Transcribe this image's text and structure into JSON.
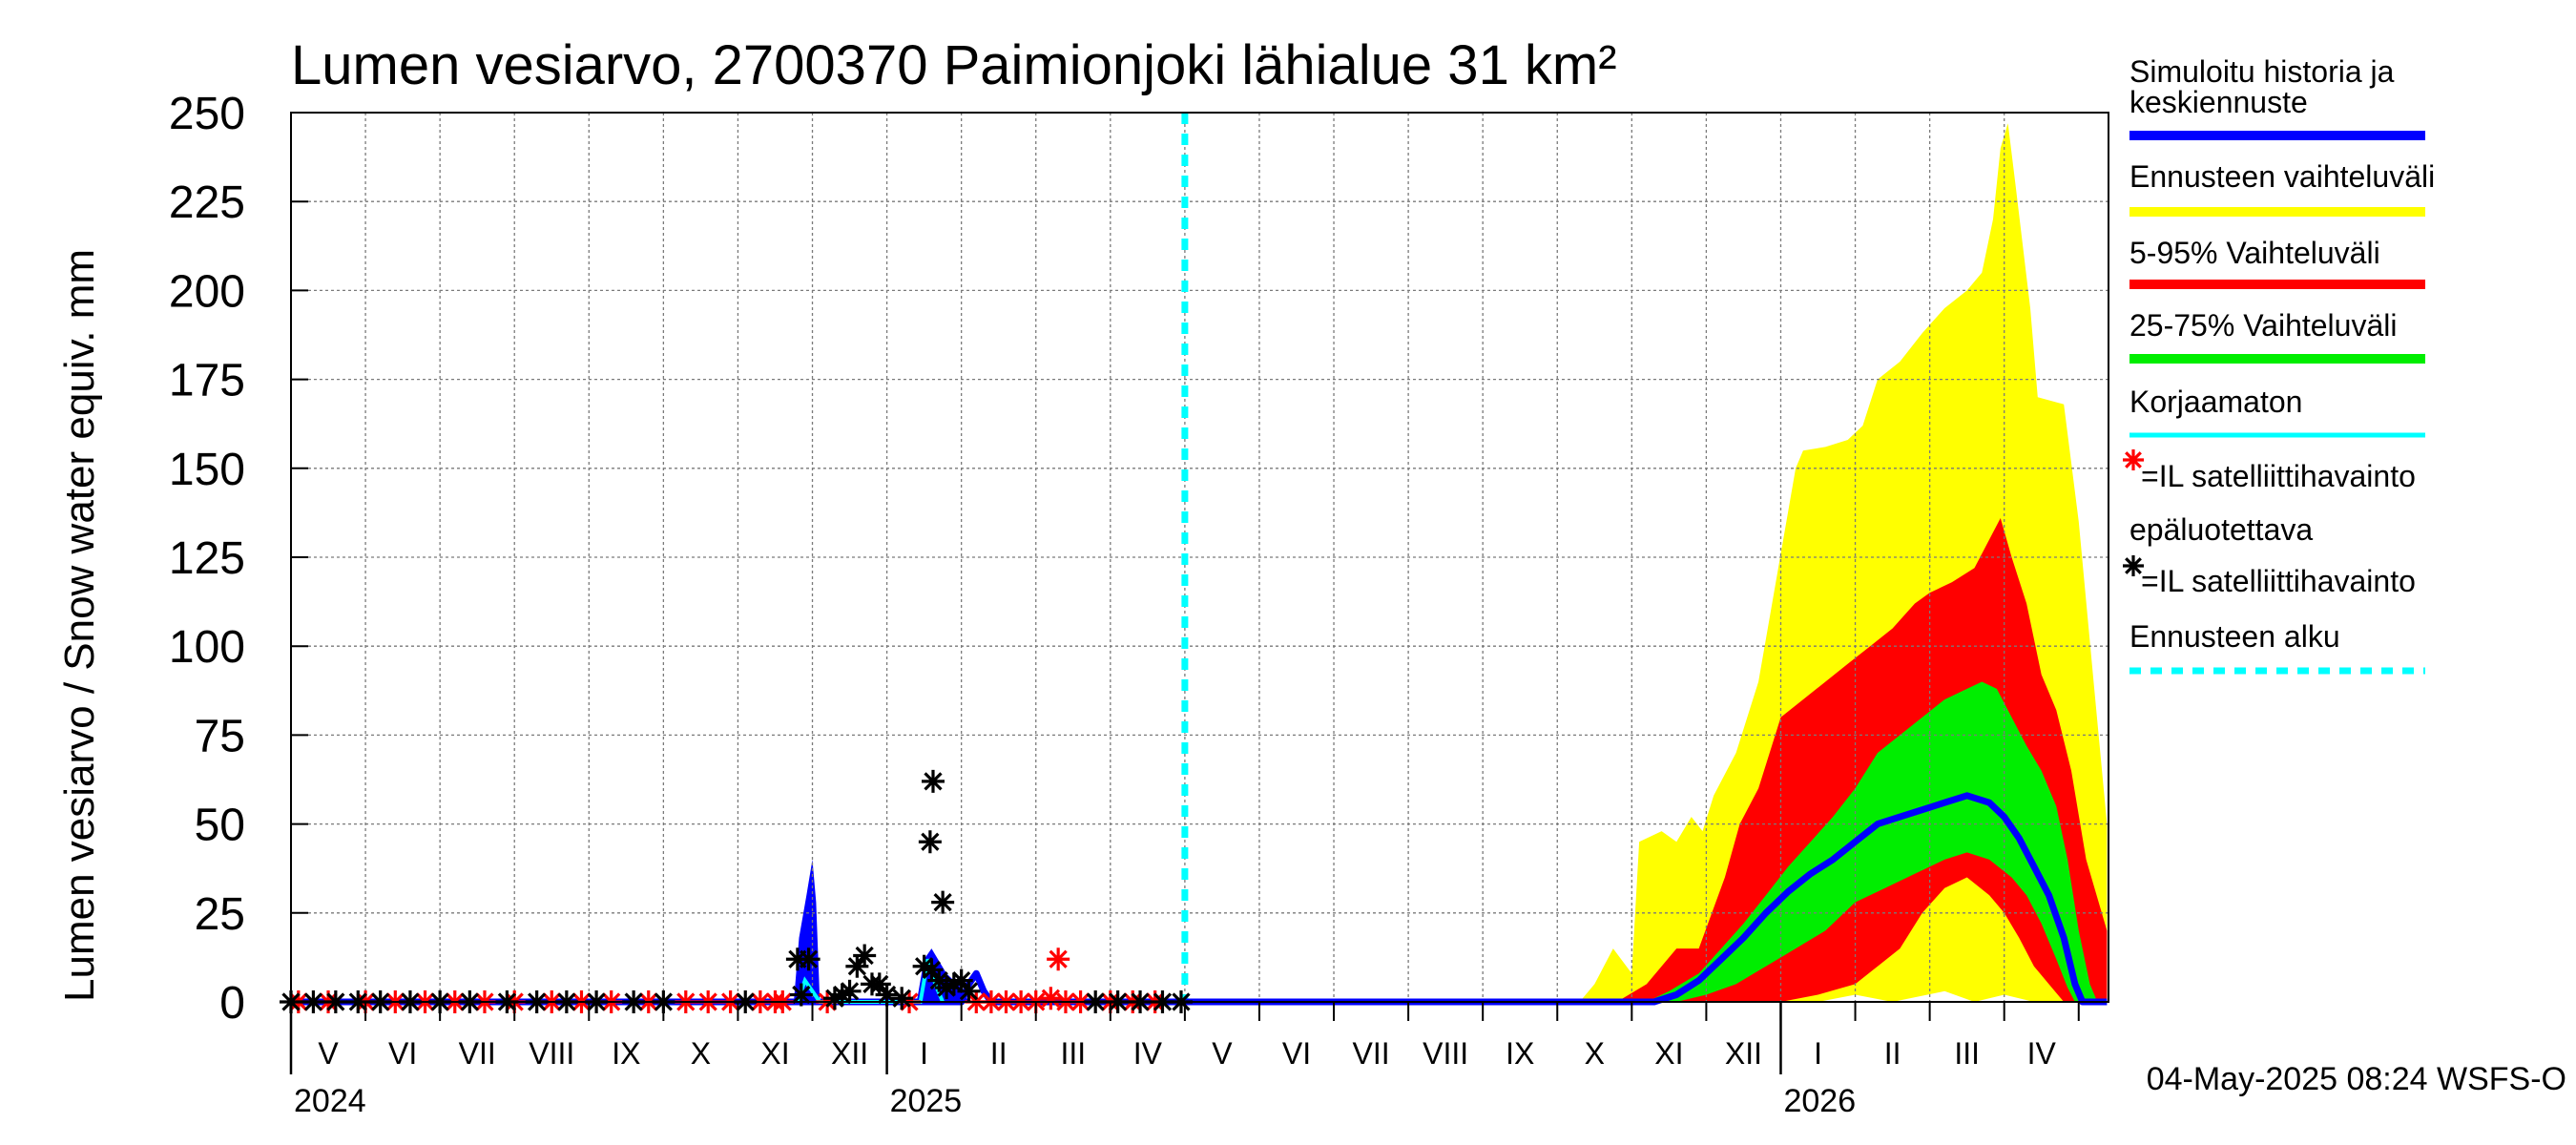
{
  "chart_data": {
    "type": "area",
    "title": "Lumen vesiarvo, 2700370 Paimionjoki lähialue 31 km²",
    "ylabel": "Lumen vesiarvo / Snow water equiv.     mm",
    "ylim": [
      0,
      250
    ],
    "yticks": [
      "0",
      "25",
      "50",
      "75",
      "100",
      "125",
      "150",
      "175",
      "200",
      "225",
      "250"
    ],
    "grid": true,
    "months": [
      {
        "label": "V",
        "center": 0.5
      },
      {
        "label": "VI",
        "center": 1.5
      },
      {
        "label": "VII",
        "center": 2.5
      },
      {
        "label": "VIII",
        "center": 3.5
      },
      {
        "label": "IX",
        "center": 4.5
      },
      {
        "label": "X",
        "center": 5.5
      },
      {
        "label": "XI",
        "center": 6.5
      },
      {
        "label": "XII",
        "center": 7.5
      },
      {
        "label": "I",
        "center": 8.5
      },
      {
        "label": "II",
        "center": 9.5
      },
      {
        "label": "III",
        "center": 10.5
      },
      {
        "label": "IV",
        "center": 11.5
      },
      {
        "label": "V",
        "center": 12.5
      },
      {
        "label": "VI",
        "center": 13.5
      },
      {
        "label": "VII",
        "center": 14.5
      },
      {
        "label": "VIII",
        "center": 15.5
      },
      {
        "label": "IX",
        "center": 16.5
      },
      {
        "label": "X",
        "center": 17.5
      },
      {
        "label": "XI",
        "center": 18.5
      },
      {
        "label": "XII",
        "center": 19.5
      },
      {
        "label": "I",
        "center": 20.5
      },
      {
        "label": "II",
        "center": 21.5
      },
      {
        "label": "III",
        "center": 22.5
      },
      {
        "label": "IV",
        "center": 23.5
      }
    ],
    "years": [
      {
        "label": "2024",
        "at": 0.0
      },
      {
        "label": "2025",
        "at": 8.0
      },
      {
        "label": "2026",
        "at": 20.0
      }
    ],
    "forecast_start": 12.0,
    "x_range": [
      0,
      24.4
    ],
    "bands": {
      "range_upper": [
        [
          17.3,
          0
        ],
        [
          17.5,
          5
        ],
        [
          17.75,
          15
        ],
        [
          18.0,
          8
        ],
        [
          18.1,
          45
        ],
        [
          18.4,
          48
        ],
        [
          18.6,
          45
        ],
        [
          18.8,
          52
        ],
        [
          18.95,
          48
        ],
        [
          19.1,
          58
        ],
        [
          19.4,
          70
        ],
        [
          19.7,
          90
        ],
        [
          19.95,
          120
        ],
        [
          20.2,
          150
        ],
        [
          20.3,
          155
        ],
        [
          20.6,
          156
        ],
        [
          20.9,
          158
        ],
        [
          21.1,
          162
        ],
        [
          21.3,
          175
        ],
        [
          21.6,
          180
        ],
        [
          21.9,
          188
        ],
        [
          22.2,
          195
        ],
        [
          22.5,
          200
        ],
        [
          22.7,
          205
        ],
        [
          22.85,
          220
        ],
        [
          22.95,
          240
        ],
        [
          23.05,
          247
        ],
        [
          23.15,
          230
        ],
        [
          23.35,
          195
        ],
        [
          23.45,
          170
        ],
        [
          23.8,
          168
        ],
        [
          24.0,
          135
        ],
        [
          24.2,
          90
        ],
        [
          24.38,
          50
        ]
      ],
      "range_lower": [
        [
          17.3,
          0
        ],
        [
          17.9,
          0
        ],
        [
          18.6,
          0
        ],
        [
          20.5,
          0
        ],
        [
          21.0,
          2
        ],
        [
          21.5,
          0
        ],
        [
          22.2,
          3
        ],
        [
          22.6,
          0
        ],
        [
          23.0,
          2
        ],
        [
          23.4,
          0
        ],
        [
          24.38,
          0
        ]
      ],
      "p95": [
        [
          17.8,
          0
        ],
        [
          18.2,
          5
        ],
        [
          18.6,
          15
        ],
        [
          18.9,
          15
        ],
        [
          19.25,
          35
        ],
        [
          19.45,
          50
        ],
        [
          19.7,
          60
        ],
        [
          20.0,
          80
        ],
        [
          20.3,
          85
        ],
        [
          20.6,
          90
        ],
        [
          20.9,
          95
        ],
        [
          21.2,
          100
        ],
        [
          21.5,
          105
        ],
        [
          21.8,
          112
        ],
        [
          22.0,
          115
        ],
        [
          22.3,
          118
        ],
        [
          22.6,
          122
        ],
        [
          22.8,
          130
        ],
        [
          22.95,
          136
        ],
        [
          23.1,
          125
        ],
        [
          23.3,
          112
        ],
        [
          23.5,
          92
        ],
        [
          23.7,
          82
        ],
        [
          23.9,
          65
        ],
        [
          24.1,
          40
        ],
        [
          24.38,
          20
        ]
      ],
      "p5": [
        [
          17.8,
          0
        ],
        [
          18.6,
          0
        ],
        [
          19.5,
          0
        ],
        [
          20.0,
          0
        ],
        [
          20.5,
          2
        ],
        [
          21.0,
          5
        ],
        [
          21.3,
          10
        ],
        [
          21.6,
          15
        ],
        [
          21.9,
          25
        ],
        [
          22.2,
          32
        ],
        [
          22.5,
          35
        ],
        [
          22.8,
          30
        ],
        [
          23.0,
          25
        ],
        [
          23.2,
          18
        ],
        [
          23.4,
          10
        ],
        [
          23.6,
          5
        ],
        [
          23.8,
          0
        ],
        [
          24.38,
          0
        ]
      ],
      "p75": [
        [
          18.2,
          0
        ],
        [
          18.5,
          3
        ],
        [
          18.9,
          8
        ],
        [
          19.2,
          15
        ],
        [
          19.5,
          22
        ],
        [
          19.8,
          30
        ],
        [
          20.1,
          38
        ],
        [
          20.4,
          45
        ],
        [
          20.7,
          52
        ],
        [
          21.0,
          60
        ],
        [
          21.3,
          70
        ],
        [
          21.6,
          75
        ],
        [
          21.9,
          80
        ],
        [
          22.2,
          85
        ],
        [
          22.5,
          88
        ],
        [
          22.7,
          90
        ],
        [
          22.9,
          88
        ],
        [
          23.1,
          80
        ],
        [
          23.3,
          72
        ],
        [
          23.5,
          65
        ],
        [
          23.7,
          55
        ],
        [
          23.85,
          40
        ],
        [
          24.0,
          20
        ],
        [
          24.15,
          5
        ],
        [
          24.25,
          0
        ]
      ],
      "p25": [
        [
          18.2,
          0
        ],
        [
          18.6,
          0
        ],
        [
          19.0,
          2
        ],
        [
          19.4,
          5
        ],
        [
          19.8,
          10
        ],
        [
          20.2,
          15
        ],
        [
          20.6,
          20
        ],
        [
          21.0,
          28
        ],
        [
          21.4,
          32
        ],
        [
          21.8,
          36
        ],
        [
          22.2,
          40
        ],
        [
          22.5,
          42
        ],
        [
          22.8,
          40
        ],
        [
          23.1,
          35
        ],
        [
          23.3,
          30
        ],
        [
          23.5,
          22
        ],
        [
          23.7,
          12
        ],
        [
          23.85,
          4
        ],
        [
          23.95,
          0
        ]
      ]
    },
    "series": [
      {
        "name": "Simuloitu historia ja keskiennuste",
        "color": "#0000ff",
        "points": [
          [
            0,
            0
          ],
          [
            9.0,
            0
          ],
          [
            9.1,
            5
          ],
          [
            9.2,
            8
          ],
          [
            9.3,
            3
          ],
          [
            9.4,
            0
          ],
          [
            12.0,
            0
          ],
          [
            18.0,
            0
          ],
          [
            18.3,
            0
          ],
          [
            18.6,
            2
          ],
          [
            18.9,
            6
          ],
          [
            19.2,
            12
          ],
          [
            19.5,
            18
          ],
          [
            19.8,
            25
          ],
          [
            20.1,
            31
          ],
          [
            20.4,
            36
          ],
          [
            20.7,
            40
          ],
          [
            21.0,
            45
          ],
          [
            21.3,
            50
          ],
          [
            21.6,
            52
          ],
          [
            21.9,
            54
          ],
          [
            22.2,
            56
          ],
          [
            22.5,
            58
          ],
          [
            22.8,
            56
          ],
          [
            23.0,
            52
          ],
          [
            23.2,
            46
          ],
          [
            23.4,
            38
          ],
          [
            23.6,
            30
          ],
          [
            23.8,
            18
          ],
          [
            23.95,
            5
          ],
          [
            24.05,
            0
          ],
          [
            24.38,
            0
          ]
        ]
      },
      {
        "name": "Korjaamaton",
        "color": "#00ffff",
        "points": [
          [
            6.8,
            0
          ],
          [
            6.9,
            6
          ],
          [
            7.0,
            3
          ],
          [
            7.1,
            0
          ],
          [
            8.45,
            0
          ],
          [
            8.55,
            12
          ],
          [
            8.65,
            5
          ],
          [
            8.75,
            0
          ]
        ]
      }
    ],
    "history_spike": [
      [
        6.75,
        0
      ],
      [
        6.82,
        18
      ],
      [
        6.92,
        30
      ],
      [
        7.0,
        40
      ],
      [
        7.05,
        28
      ],
      [
        7.1,
        0
      ]
    ],
    "history_spike2": [
      [
        8.4,
        0
      ],
      [
        8.5,
        12
      ],
      [
        8.6,
        15
      ],
      [
        8.8,
        8
      ],
      [
        9.0,
        4
      ],
      [
        9.1,
        0
      ]
    ],
    "obs_black": [
      [
        0.0,
        0
      ],
      [
        0.3,
        0
      ],
      [
        0.6,
        0
      ],
      [
        0.9,
        0
      ],
      [
        1.2,
        0
      ],
      [
        1.6,
        0
      ],
      [
        2.0,
        0
      ],
      [
        2.4,
        0
      ],
      [
        2.9,
        0
      ],
      [
        3.3,
        0
      ],
      [
        3.7,
        0
      ],
      [
        4.1,
        0
      ],
      [
        4.6,
        0
      ],
      [
        5.0,
        0
      ],
      [
        6.1,
        0
      ],
      [
        6.8,
        12
      ],
      [
        6.85,
        2
      ],
      [
        6.95,
        12
      ],
      [
        7.3,
        1
      ],
      [
        7.4,
        2
      ],
      [
        7.5,
        3
      ],
      [
        7.6,
        10
      ],
      [
        7.7,
        13
      ],
      [
        7.8,
        5
      ],
      [
        7.9,
        5
      ],
      [
        8.0,
        2
      ],
      [
        8.2,
        1
      ],
      [
        8.5,
        10
      ],
      [
        8.6,
        9
      ],
      [
        8.7,
        6
      ],
      [
        8.8,
        4
      ],
      [
        8.9,
        5
      ],
      [
        9.0,
        6
      ],
      [
        9.1,
        3
      ],
      [
        8.62,
        62
      ],
      [
        8.58,
        45
      ],
      [
        8.75,
        28
      ],
      [
        10.8,
        0
      ],
      [
        11.1,
        0
      ],
      [
        11.4,
        0
      ],
      [
        11.7,
        0
      ],
      [
        11.95,
        0
      ]
    ],
    "obs_red": [
      [
        0.1,
        0
      ],
      [
        0.5,
        0
      ],
      [
        1.0,
        0
      ],
      [
        1.4,
        0
      ],
      [
        1.8,
        0
      ],
      [
        2.2,
        0
      ],
      [
        2.6,
        0
      ],
      [
        3.0,
        0
      ],
      [
        3.5,
        0
      ],
      [
        3.9,
        0
      ],
      [
        4.3,
        0
      ],
      [
        4.8,
        0
      ],
      [
        5.3,
        0
      ],
      [
        5.6,
        0
      ],
      [
        5.9,
        0
      ],
      [
        6.3,
        0
      ],
      [
        6.5,
        0
      ],
      [
        6.6,
        0
      ],
      [
        7.2,
        0
      ],
      [
        8.3,
        0
      ],
      [
        9.2,
        0
      ],
      [
        9.4,
        0
      ],
      [
        9.6,
        0
      ],
      [
        9.8,
        0
      ],
      [
        10.0,
        0
      ],
      [
        10.2,
        1
      ],
      [
        10.4,
        0
      ],
      [
        10.6,
        0
      ],
      [
        11.0,
        0
      ],
      [
        11.3,
        0
      ],
      [
        11.6,
        0
      ],
      [
        10.3,
        12
      ]
    ],
    "legend": [
      {
        "label": "Simuloitu historia ja",
        "label2": "keskiennuste",
        "color": "#0000ff"
      },
      {
        "label": "Ennusteen vaihteluväli",
        "color": "#ffff00"
      },
      {
        "label": "5-95% Vaihteluväli",
        "color": "#ff0000"
      },
      {
        "label": "25-75% Vaihteluväli",
        "color": "#00ee00"
      },
      {
        "label": "Korjaamaton",
        "color": "#00ffff"
      },
      {
        "label": "=IL satelliittihavainto",
        "color": "#ff0000",
        "marker": true
      },
      {
        "label": "epäluotettava",
        "label2": "=IL satelliittihavainto",
        "color": "#000000",
        "marker": true
      },
      {
        "label": "Ennusteen alku",
        "color": "#00ffff",
        "dashed": true
      }
    ]
  },
  "footer": {
    "timestamp": "04-May-2025 08:24 WSFS-O"
  }
}
